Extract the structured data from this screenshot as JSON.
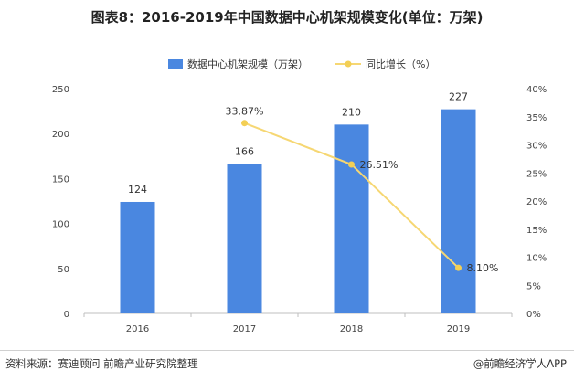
{
  "title": "图表8：2016-2019年中国数据中心机架规模变化(单位：万架)",
  "footer": {
    "source": "资料来源：赛迪顾问 前瞻产业研究院整理",
    "brand": "@前瞻经济学人APP"
  },
  "colors": {
    "bar": "#4a87e0",
    "line": "#f6d773",
    "marker": "#f3cf55"
  },
  "chart_data": {
    "type": "bar+line",
    "categories": [
      "2016",
      "2017",
      "2018",
      "2019"
    ],
    "series": [
      {
        "name": "数据中心机架规模（万架）",
        "type": "bar",
        "axis": "left",
        "values": [
          124,
          166,
          210,
          227
        ],
        "labels": [
          "124",
          "166",
          "210",
          "227"
        ]
      },
      {
        "name": "同比增长（%）",
        "type": "line",
        "axis": "right",
        "values": [
          null,
          33.87,
          26.51,
          8.1
        ],
        "labels": [
          "",
          "33.87%",
          "26.51%",
          "8.10%"
        ]
      }
    ],
    "left_axis": {
      "min": 0,
      "max": 250,
      "ticks": [
        "0",
        "50",
        "100",
        "150",
        "200",
        "250"
      ]
    },
    "right_axis": {
      "min": 0,
      "max": 40,
      "ticks": [
        "0%",
        "5%",
        "10%",
        "15%",
        "20%",
        "25%",
        "30%",
        "35%",
        "40%"
      ]
    },
    "legend_position": "top-center",
    "grid": false
  }
}
